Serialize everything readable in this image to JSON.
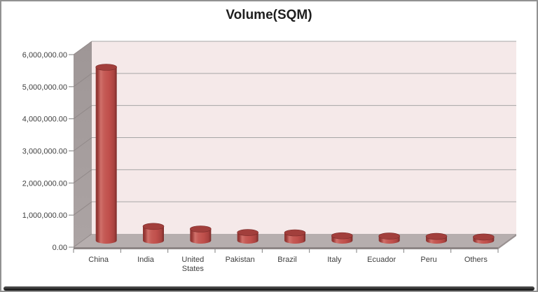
{
  "title": "Volume(SQM)",
  "chart_data": {
    "type": "bar",
    "subtype": "cylinder-3d",
    "title": "Volume(SQM)",
    "categories": [
      "China",
      "India",
      "United States",
      "Pakistan",
      "Brazil",
      "Italy",
      "Ecuador",
      "Peru",
      "Others"
    ],
    "values": [
      5400000,
      440000,
      360000,
      250000,
      240000,
      150000,
      140000,
      130000,
      110000
    ],
    "ylim": [
      0,
      6000000
    ],
    "y_tick_step": 1000000,
    "y_tick_labels": [
      "0.00",
      "1,000,000.00",
      "2,000,000.00",
      "3,000,000.00",
      "4,000,000.00",
      "5,000,000.00",
      "6,000,000.00"
    ],
    "grid": true,
    "legend": "none",
    "xlabel": "",
    "ylabel": ""
  },
  "colors": {
    "bar_fill": "#bf4f4b",
    "bar_dark": "#7a2b29",
    "bar_light": "#d0706a",
    "bar_top": "#a23f3c",
    "back_wall": "#f5e9e9",
    "side_wall": "#a69e9e",
    "floor": "#b6aeae",
    "floor_front": "#8d8585",
    "floor_side": "#9a9292",
    "gridline": "#a6a6a6",
    "wall_gridline": "#918989",
    "tick": "#7f7f7f",
    "axis_text": "#3f3f3f",
    "title_text": "#1f1f1f",
    "frame_border": "#929292"
  }
}
